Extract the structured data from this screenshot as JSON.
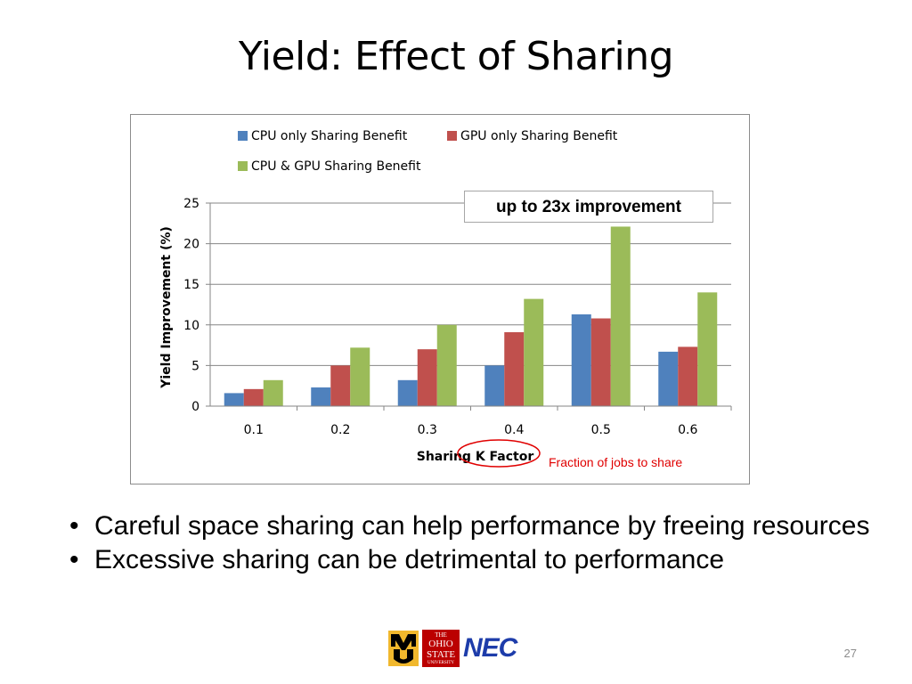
{
  "slide": {
    "title": "Yield: Effect of Sharing",
    "page_number": "27",
    "bullets": [
      "Careful space sharing can help performance by freeing resources",
      "Excessive sharing can be detrimental to performance"
    ],
    "logos": {
      "osu_line1": "THE",
      "osu_line2": "OHIO",
      "osu_line3": "STATE",
      "osu_line4": "UNIVERSITY",
      "nec": "NEC"
    }
  },
  "annotations": {
    "callout": "up to 23x improvement",
    "fraction_note": "Fraction of jobs to share"
  },
  "colors": {
    "cpu": "#4f81bd",
    "gpu": "#c0504d",
    "both": "#9bbb59",
    "annotation_red": "#e00000"
  },
  "chart_data": {
    "type": "bar",
    "categories": [
      "0.1",
      "0.2",
      "0.3",
      "0.4",
      "0.5",
      "0.6"
    ],
    "series": [
      {
        "name": "CPU only Sharing Benefit",
        "values": [
          1.6,
          2.3,
          3.2,
          5.0,
          11.3,
          6.7
        ]
      },
      {
        "name": "GPU only Sharing Benefit",
        "values": [
          2.1,
          5.0,
          7.0,
          9.1,
          10.8,
          7.3
        ]
      },
      {
        "name": "CPU & GPU Sharing Benefit",
        "values": [
          3.2,
          7.2,
          10.0,
          13.2,
          22.1,
          14.0
        ]
      }
    ],
    "xlabel": "Sharing K Factor",
    "ylabel": "Yield Improvement (%)",
    "ylim": [
      0,
      25
    ],
    "yticks": [
      0,
      5,
      10,
      15,
      20,
      25
    ],
    "grid": true,
    "legend_position": "top"
  }
}
